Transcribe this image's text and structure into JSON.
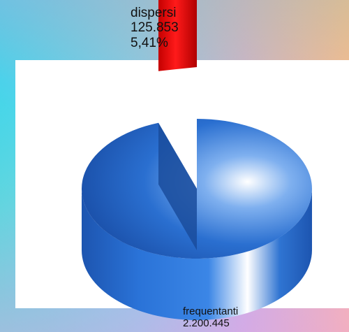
{
  "chart_data": {
    "type": "pie",
    "style": "3d-cylinder",
    "slices": [
      {
        "label": "dispersi",
        "value": 125853,
        "value_text": "125.853",
        "percent": 5.41,
        "percent_text": "5,41%",
        "color": "#e80000",
        "exploded": true
      },
      {
        "label": "frequentanti",
        "value": 2200445,
        "value_text": "2.200.445",
        "color": "#1f5fc0"
      }
    ]
  }
}
